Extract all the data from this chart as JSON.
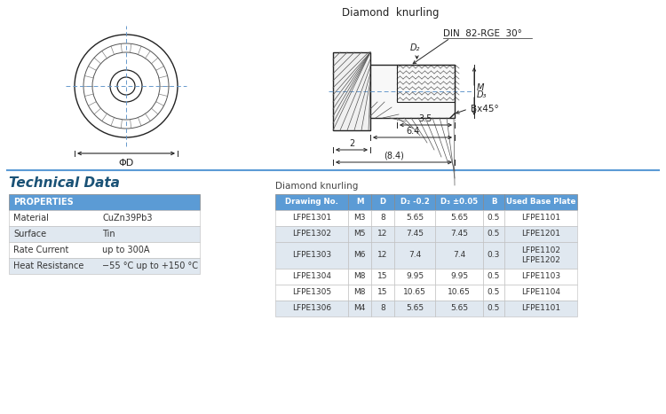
{
  "bg_color": "#ffffff",
  "tech_data_title": "Technical Data",
  "tech_data_color": "#1a5276",
  "properties_header": "PROPERTIES",
  "properties_header_bg": "#5b9bd5",
  "properties_header_color": "#ffffff",
  "properties": [
    [
      "Material",
      "CuZn39Pb3"
    ],
    [
      "Surface",
      "Tin"
    ],
    [
      "Rate Current",
      "up to 300A"
    ],
    [
      "Heat Resistance",
      "−55 °C up to +150 °C"
    ]
  ],
  "prop_row_colors": [
    "#ffffff",
    "#e0e8f0",
    "#ffffff",
    "#e0e8f0"
  ],
  "diamond_knurling_label": "Diamond knurling",
  "table_headers": [
    "Drawing No.",
    "M",
    "D",
    "D₂ -0.2",
    "D₃ ±0.05",
    "B",
    "Used Base Plate"
  ],
  "table_header_bg": "#5b9bd5",
  "table_header_color": "#ffffff",
  "table_rows": [
    [
      "LFPE1301",
      "M3",
      "8",
      "5.65",
      "5.65",
      "0.5",
      "LFPE1101"
    ],
    [
      "LFPE1302",
      "M5",
      "12",
      "7.45",
      "7.45",
      "0.5",
      "LFPE1201"
    ],
    [
      "LFPE1303",
      "M6",
      "12",
      "7.4",
      "7.4",
      "0.3",
      "LFPE1102\nLFPE1202"
    ],
    [
      "LFPE1304",
      "M8",
      "15",
      "9.95",
      "9.95",
      "0.5",
      "LFPE1103"
    ],
    [
      "LFPE1305",
      "M8",
      "15",
      "10.65",
      "10.65",
      "0.5",
      "LFPE1104"
    ],
    [
      "LFPE1306",
      "M4",
      "8",
      "5.65",
      "5.65",
      "0.5",
      "LFPE1101"
    ]
  ],
  "table_row_colors": [
    "#ffffff",
    "#e0e8f0",
    "#e0e8f0",
    "#ffffff",
    "#ffffff",
    "#e0e8f0"
  ],
  "diagram_label_diamond": "Diamond  knurling",
  "diagram_label_din": "DIN  82-RGE  30°",
  "diagram_label_bx45": "Bx45°",
  "diagram_label_phi_d": "ΦD",
  "diagram_dim_35": "3.5",
  "diagram_dim_2": "2",
  "diagram_dim_64": "6.4",
  "diagram_dim_84": "(8.4)"
}
